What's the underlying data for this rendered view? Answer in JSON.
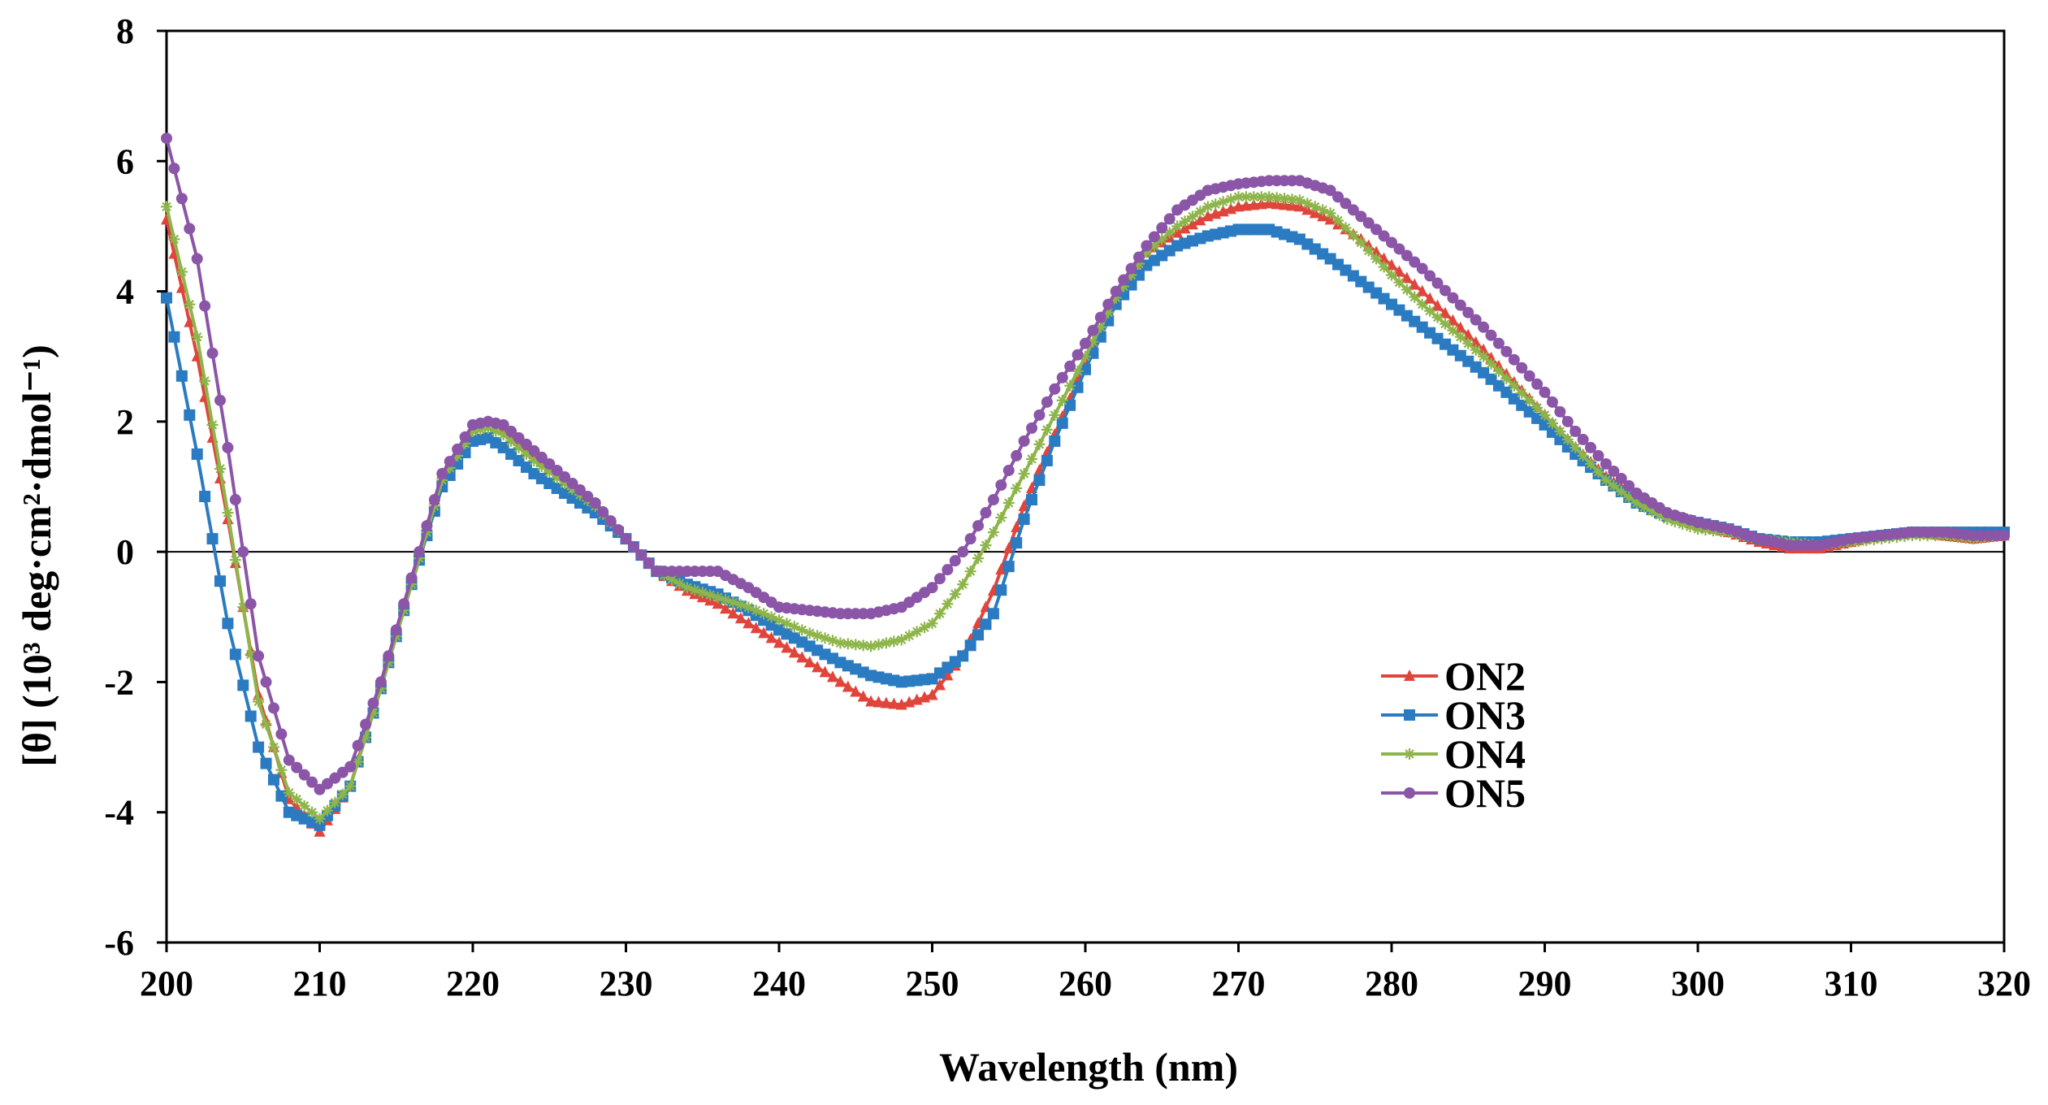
{
  "chart_data": {
    "type": "line",
    "title": "",
    "xlabel": "Wavelength (nm)",
    "ylabel": "[θ] (10³ deg·cm²·dmol⁻¹)",
    "xlim": [
      200,
      320
    ],
    "ylim": [
      -6,
      8
    ],
    "xticks": [
      "200",
      "210",
      "220",
      "230",
      "240",
      "250",
      "260",
      "270",
      "280",
      "290",
      "300",
      "310",
      "320"
    ],
    "yticks": [
      "-6",
      "-4",
      "-2",
      "0",
      "2",
      "4",
      "6",
      "8"
    ],
    "grid": false,
    "zero_line": true,
    "legend_position": "right-center",
    "series": [
      {
        "name": "ON2",
        "color": "#E0453C",
        "marker": "triangle",
        "x": [
          200,
          202,
          204,
          206,
          208,
          210,
          212,
          214,
          216,
          218,
          220,
          221,
          222,
          224,
          226,
          228,
          230,
          232,
          234,
          236,
          238,
          240,
          242,
          244,
          246,
          248,
          250,
          252,
          254,
          256,
          258,
          260,
          262,
          264,
          266,
          268,
          270,
          272,
          274,
          276,
          278,
          280,
          282,
          284,
          286,
          288,
          290,
          292,
          294,
          296,
          298,
          300,
          302,
          304,
          306,
          308,
          310,
          312,
          314,
          316,
          318,
          320
        ],
        "y": [
          5.1,
          3.0,
          0.5,
          -2.2,
          -3.8,
          -4.3,
          -3.6,
          -2.0,
          -0.4,
          1.2,
          1.9,
          2.0,
          1.9,
          1.5,
          1.1,
          0.7,
          0.2,
          -0.3,
          -0.6,
          -0.8,
          -1.1,
          -1.4,
          -1.7,
          -2.0,
          -2.3,
          -2.35,
          -2.2,
          -1.6,
          -0.6,
          0.7,
          1.8,
          2.9,
          3.9,
          4.6,
          4.9,
          5.15,
          5.3,
          5.35,
          5.3,
          5.1,
          4.8,
          4.4,
          4.0,
          3.55,
          3.1,
          2.6,
          2.1,
          1.6,
          1.15,
          0.8,
          0.55,
          0.4,
          0.3,
          0.15,
          0.05,
          0.05,
          0.15,
          0.25,
          0.3,
          0.25,
          0.2,
          0.25
        ]
      },
      {
        "name": "ON3",
        "color": "#2A7BC2",
        "marker": "square",
        "x": [
          200,
          202,
          204,
          206,
          208,
          210,
          212,
          214,
          216,
          218,
          220,
          221,
          222,
          224,
          226,
          228,
          230,
          232,
          234,
          236,
          238,
          240,
          242,
          244,
          246,
          248,
          250,
          252,
          254,
          256,
          258,
          260,
          262,
          264,
          266,
          268,
          270,
          272,
          274,
          276,
          278,
          280,
          282,
          284,
          286,
          288,
          290,
          292,
          294,
          296,
          298,
          300,
          302,
          304,
          306,
          308,
          310,
          312,
          314,
          316,
          318,
          320
        ],
        "y": [
          3.9,
          1.5,
          -1.1,
          -3.0,
          -4.0,
          -4.2,
          -3.6,
          -2.1,
          -0.5,
          1.0,
          1.7,
          1.75,
          1.6,
          1.2,
          0.9,
          0.6,
          0.2,
          -0.3,
          -0.5,
          -0.65,
          -0.9,
          -1.2,
          -1.45,
          -1.7,
          -1.9,
          -2.0,
          -1.95,
          -1.6,
          -0.95,
          0.5,
          1.7,
          2.8,
          3.8,
          4.4,
          4.7,
          4.85,
          4.95,
          4.95,
          4.8,
          4.5,
          4.15,
          3.8,
          3.45,
          3.1,
          2.75,
          2.35,
          1.95,
          1.5,
          1.1,
          0.75,
          0.55,
          0.45,
          0.35,
          0.2,
          0.15,
          0.15,
          0.2,
          0.25,
          0.3,
          0.3,
          0.3,
          0.3
        ]
      },
      {
        "name": "ON4",
        "color": "#8DB54A",
        "marker": "star",
        "x": [
          200,
          202,
          204,
          206,
          208,
          210,
          212,
          214,
          216,
          218,
          220,
          221,
          222,
          224,
          226,
          228,
          230,
          232,
          234,
          236,
          238,
          240,
          242,
          244,
          246,
          248,
          250,
          252,
          254,
          256,
          258,
          260,
          262,
          264,
          266,
          268,
          270,
          272,
          274,
          276,
          278,
          280,
          282,
          284,
          286,
          288,
          290,
          292,
          294,
          296,
          298,
          300,
          302,
          304,
          306,
          308,
          310,
          312,
          314,
          316,
          318,
          320
        ],
        "y": [
          5.3,
          3.3,
          0.6,
          -2.3,
          -3.7,
          -4.1,
          -3.6,
          -2.1,
          -0.5,
          1.1,
          1.85,
          1.9,
          1.8,
          1.4,
          1.05,
          0.7,
          0.2,
          -0.3,
          -0.55,
          -0.7,
          -0.85,
          -1.05,
          -1.25,
          -1.4,
          -1.45,
          -1.35,
          -1.1,
          -0.5,
          0.3,
          1.2,
          2.1,
          3.0,
          3.9,
          4.6,
          5.0,
          5.3,
          5.45,
          5.45,
          5.4,
          5.2,
          4.75,
          4.25,
          3.8,
          3.4,
          3.0,
          2.55,
          2.1,
          1.6,
          1.1,
          0.75,
          0.5,
          0.35,
          0.3,
          0.2,
          0.15,
          0.1,
          0.15,
          0.2,
          0.25,
          0.25,
          0.2,
          0.25
        ]
      },
      {
        "name": "ON5",
        "color": "#8B55A8",
        "marker": "circle",
        "x": [
          200,
          202,
          204,
          206,
          208,
          210,
          212,
          214,
          216,
          218,
          220,
          221,
          222,
          224,
          226,
          228,
          230,
          232,
          234,
          236,
          238,
          240,
          242,
          244,
          246,
          248,
          250,
          252,
          254,
          256,
          258,
          260,
          262,
          264,
          266,
          268,
          270,
          272,
          274,
          276,
          278,
          280,
          282,
          284,
          286,
          288,
          290,
          292,
          294,
          296,
          298,
          300,
          302,
          304,
          306,
          308,
          310,
          312,
          314,
          316,
          318,
          320
        ],
        "y": [
          6.35,
          4.5,
          1.6,
          -1.6,
          -3.2,
          -3.65,
          -3.3,
          -2.0,
          -0.4,
          1.2,
          1.95,
          2.0,
          1.95,
          1.55,
          1.15,
          0.75,
          0.2,
          -0.3,
          -0.3,
          -0.3,
          -0.55,
          -0.85,
          -0.9,
          -0.95,
          -0.95,
          -0.85,
          -0.55,
          0.0,
          0.8,
          1.7,
          2.5,
          3.2,
          4.0,
          4.7,
          5.25,
          5.55,
          5.65,
          5.7,
          5.7,
          5.55,
          5.15,
          4.75,
          4.35,
          3.9,
          3.45,
          2.95,
          2.45,
          1.85,
          1.35,
          0.9,
          0.6,
          0.45,
          0.35,
          0.2,
          0.1,
          0.1,
          0.2,
          0.25,
          0.3,
          0.3,
          0.25,
          0.25
        ]
      }
    ]
  }
}
